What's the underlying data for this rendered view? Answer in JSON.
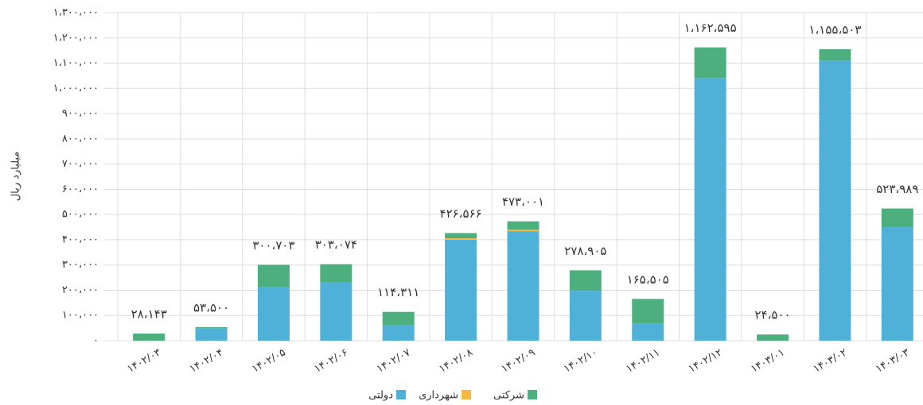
{
  "chart_data": {
    "type": "stacked_bar",
    "y_label": "میلیارد ریال",
    "categories": [
      "۱۴۰۲/۰۳",
      "۱۴۰۲/۰۴",
      "۱۴۰۲/۰۵",
      "۱۴۰۲/۰۶",
      "۱۴۰۲/۰۷",
      "۱۴۰۲/۰۸",
      "۱۴۰۲/۰۹",
      "۱۴۰۲/۱۰",
      "۱۴۰۲/۱۱",
      "۱۴۰۲/۱۲",
      "۱۴۰۳/۰۱",
      "۱۴۰۳/۰۲",
      "۱۴۰۳/۰۳"
    ],
    "series": [
      {
        "name": "دولتی",
        "color": "#4fb0d8",
        "values": [
          0,
          50000,
          214000,
          233000,
          63000,
          400000,
          434000,
          198000,
          69000,
          1041000,
          0,
          1110000,
          450000
        ]
      },
      {
        "name": "شهرداری",
        "color": "#f5b942",
        "values": [
          0,
          0,
          0,
          0,
          0,
          6000,
          6000,
          0,
          0,
          0,
          0,
          0,
          0
        ]
      },
      {
        "name": "شرکتی",
        "color": "#4caf7d",
        "values": [
          28143,
          3500,
          86703,
          70074,
          51311,
          20566,
          33001,
          80905,
          96505,
          121595,
          24500,
          45503,
          73989
        ]
      }
    ],
    "totals": [
      28143,
      53500,
      300703,
      303074,
      114311,
      426566,
      473001,
      278905,
      165505,
      1162595,
      24500,
      1155503,
      523989
    ],
    "total_labels": [
      "۲۸،۱۴۳",
      "۵۳،۵۰۰",
      "۳۰۰،۷۰۳",
      "۳۰۳،۰۷۴",
      "۱۱۴،۳۱۱",
      "۴۲۶،۵۶۶",
      "۴۷۳،۰۰۱",
      "۲۷۸،۹۰۵",
      "۱۶۵،۵۰۵",
      "۱،۱۶۲،۵۹۵",
      "۲۴،۵۰۰",
      "۱،۱۵۵،۵۰۳",
      "۵۲۳،۹۸۹"
    ],
    "ylim": [
      0,
      1300000
    ],
    "yticks": [
      {
        "value": 0,
        "label": "۰"
      },
      {
        "value": 100000,
        "label": "۱۰۰،۰۰۰"
      },
      {
        "value": 200000,
        "label": "۲۰۰،۰۰۰"
      },
      {
        "value": 300000,
        "label": "۳۰۰،۰۰۰"
      },
      {
        "value": 400000,
        "label": "۴۰۰،۰۰۰"
      },
      {
        "value": 500000,
        "label": "۵۰۰،۰۰۰"
      },
      {
        "value": 600000,
        "label": "۶۰۰،۰۰۰"
      },
      {
        "value": 700000,
        "label": "۷۰۰،۰۰۰"
      },
      {
        "value": 800000,
        "label": "۸۰۰،۰۰۰"
      },
      {
        "value": 900000,
        "label": "۹۰۰،۰۰۰"
      },
      {
        "value": 1000000,
        "label": "۱،۰۰۰،۰۰۰"
      },
      {
        "value": 1100000,
        "label": "۱،۱۰۰،۰۰۰"
      },
      {
        "value": 1200000,
        "label": "۱،۲۰۰،۰۰۰"
      },
      {
        "value": 1300000,
        "label": "۱،۳۰۰،۰۰۰"
      }
    ],
    "grid": true
  }
}
